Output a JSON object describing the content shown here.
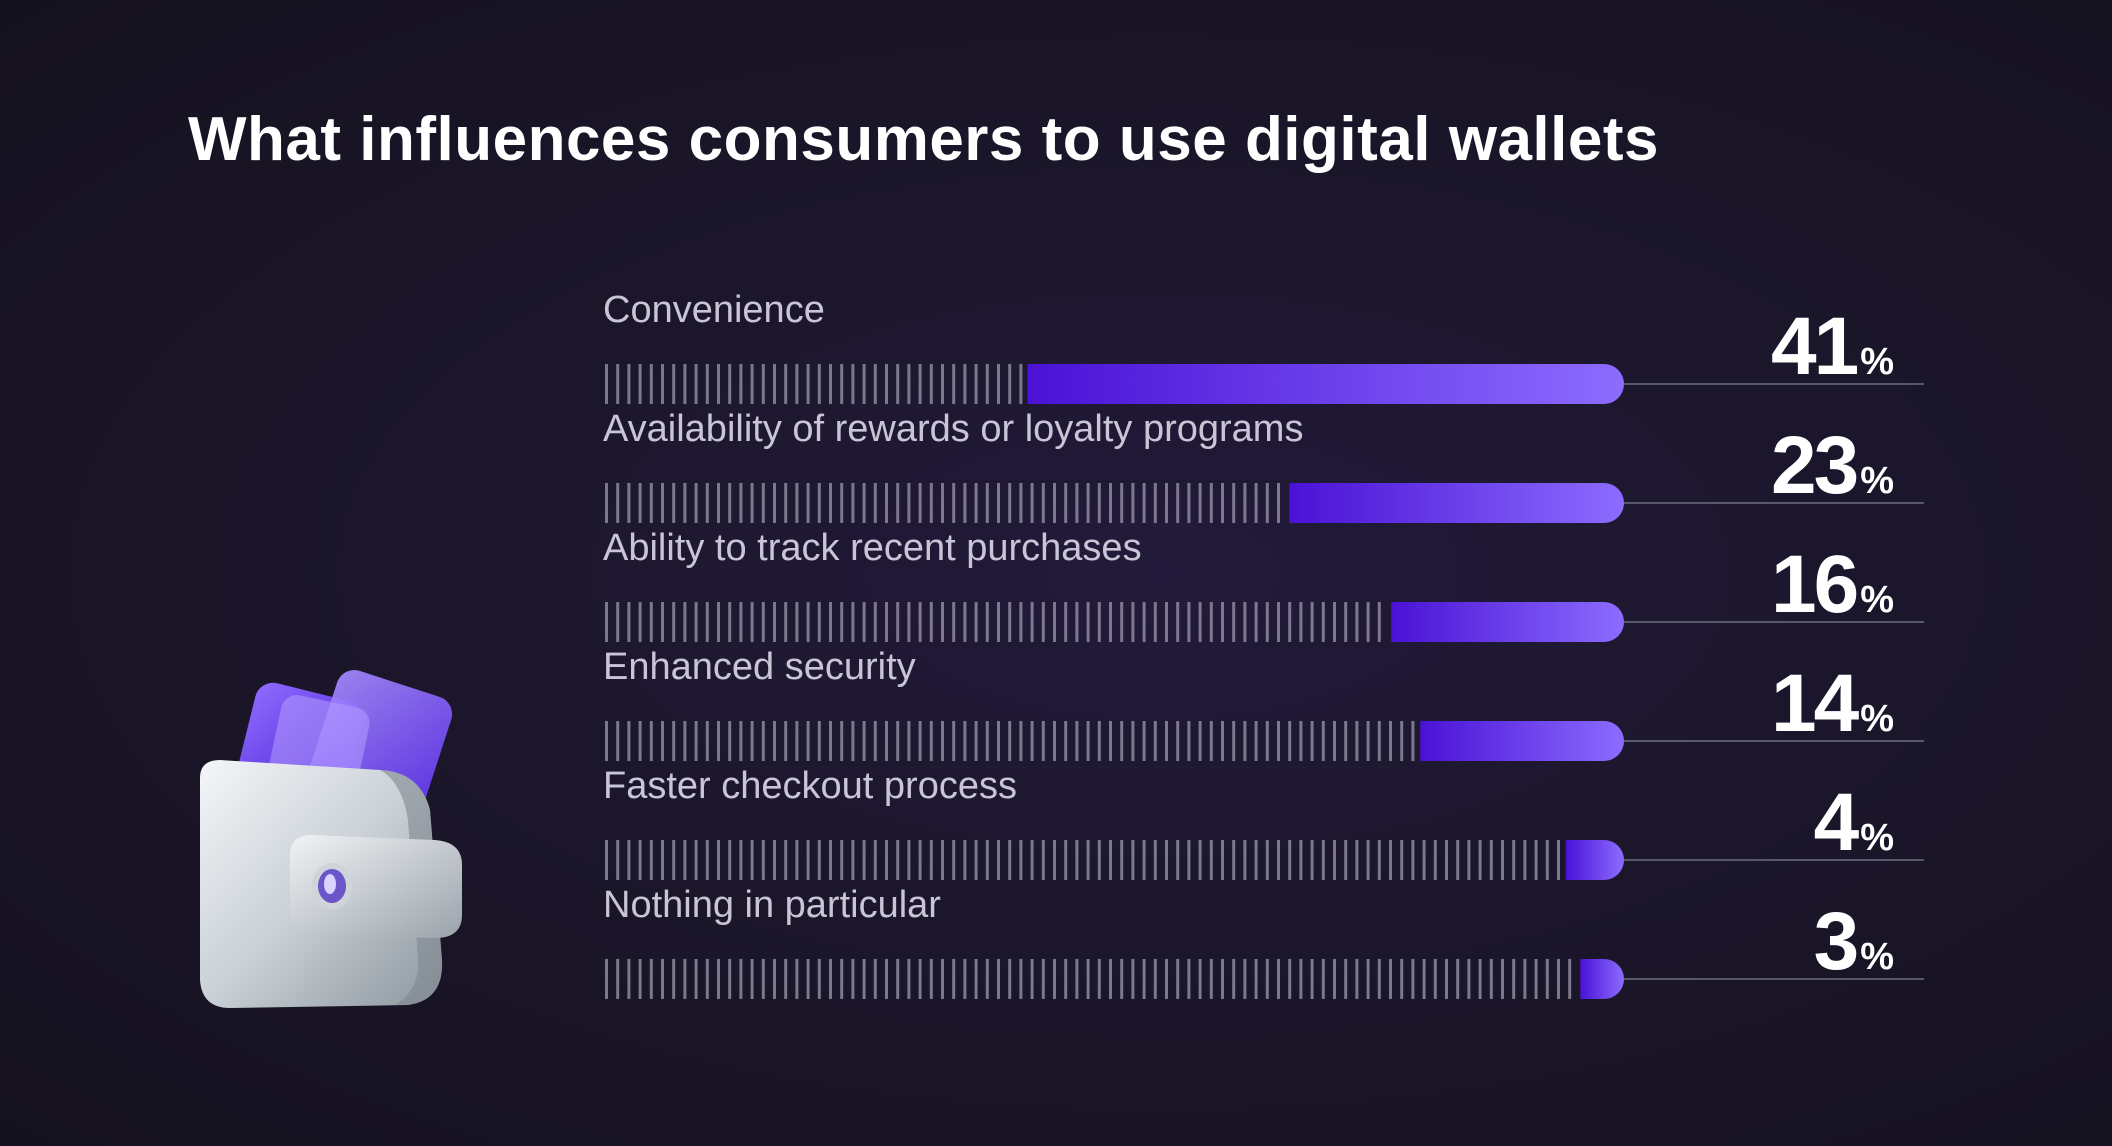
{
  "chart_data": {
    "type": "bar",
    "title": "What influences consumers to use digital wallets",
    "categories": [
      "Convenience",
      "Availability of rewards or loyalty programs",
      "Ability to track recent purchases",
      "Enhanced security",
      "Faster checkout process",
      "Nothing in particular"
    ],
    "values": [
      41,
      23,
      16,
      14,
      4,
      3
    ],
    "value_suffix": "%",
    "xlim": [
      0,
      100
    ],
    "orientation": "horizontal",
    "grid": false,
    "legend": "none"
  },
  "colors": {
    "background": "#1a1528",
    "bar_start": "#4a12d6",
    "bar_end": "#8c6cff",
    "tick": "#8d8a9c",
    "leader_line": "#6f6c80",
    "label": "#c9c5d6",
    "value": "#ffffff"
  },
  "illustration": {
    "icon": "wallet-icon"
  }
}
